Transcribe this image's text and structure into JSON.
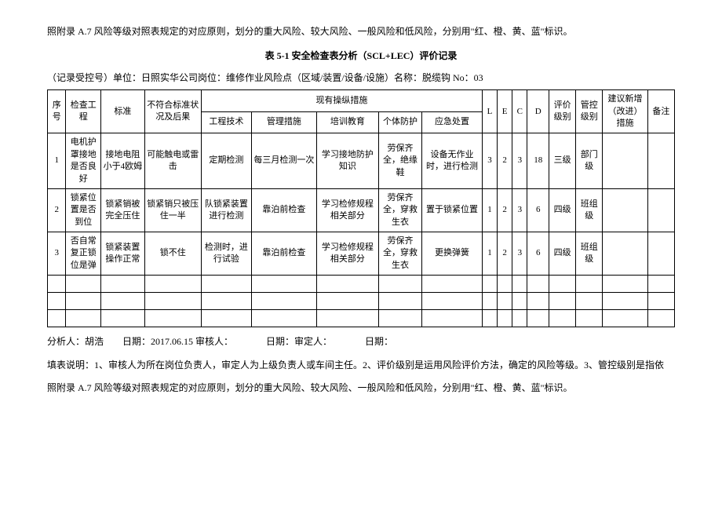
{
  "intro_para": "照附录 A.7 风险等级对照表规定的对应原则，划分的重大风险、较大风险、一般风险和低风险，分别用\"红、橙、黄、蓝\"标识。",
  "table_title": "表 5-1 安全检查表分析（SCL+LEC）评价记录",
  "info_line": "（记录受控号）单位：日照实华公司岗位：维修作业风险点（区域/装置/设备/设施）名称：脱缆钩 No：03",
  "headers": {
    "seq": "序号",
    "item": "检查工程",
    "std": "标准",
    "nonconf": "不符合标准状况及后果",
    "measures_group": "现有操纵措施",
    "tech": "工程技术",
    "mgmt": "管理措施",
    "train": "培训教育",
    "ppe": "个体防护",
    "emerg": "应急处置",
    "L": "L",
    "E": "E",
    "C": "C",
    "D": "D",
    "eval": "评价级别",
    "ctrl": "管控级别",
    "imp": "建议新增（改进）措施",
    "remark": "备注"
  },
  "rows": [
    {
      "seq": "1",
      "item": "电机护罩接地是否良好",
      "std": "接地电阻小于4欧姆",
      "nonconf": "可能触电或雷击",
      "tech": "定期检测",
      "mgmt": "每三月检测一次",
      "train": "学习接地防护知识",
      "ppe": "劳保齐全，绝缘鞋",
      "emerg": "设备无作业时，进行检测",
      "L": "3",
      "E": "2",
      "C": "3",
      "D": "18",
      "eval": "三级",
      "ctrl": "部门级",
      "imp": "",
      "remark": ""
    },
    {
      "seq": "2",
      "item": "锁紧位置是否到位",
      "std": "锁紧销被完全压住",
      "nonconf": "锁紧销只被压住一半",
      "tech": "队锁紧装置进行检测",
      "mgmt": "靠泊前检查",
      "train": "学习检修规程相关部分",
      "ppe": "劳保齐全，穿救生衣",
      "emerg": "置于锁紧位置",
      "L": "1",
      "E": "2",
      "C": "3",
      "D": "6",
      "eval": "四级",
      "ctrl": "班组级",
      "imp": "",
      "remark": ""
    },
    {
      "seq": "3",
      "item": "否自常复正锁位是弹",
      "std": "锁紧装置操作正常",
      "nonconf": "锁不住",
      "tech": "检测时，进行试验",
      "mgmt": "靠泊前检查",
      "train": "学习检修规程相关部分",
      "ppe": "劳保齐全，穿救生衣",
      "emerg": "更换弹簧",
      "L": "1",
      "E": "2",
      "C": "3",
      "D": "6",
      "eval": "四级",
      "ctrl": "班组级",
      "imp": "",
      "remark": ""
    }
  ],
  "footer_line": "分析人：胡浩　　日期：2017.06.15 审核人：　　　　日期：审定人：　　　　日期：",
  "note1": "填表说明：1、审核人为所在岗位负责人，审定人为上级负责人或车间主任。2、评价级别是运用风险评价方法，确定的风险等级。3、管控级别是指依",
  "note2": "照附录 A.7 风险等级对照表规定的对应原则，划分的重大风险、较大风险、一般风险和低风险，分别用\"红、橙、黄、蓝\"标识。"
}
